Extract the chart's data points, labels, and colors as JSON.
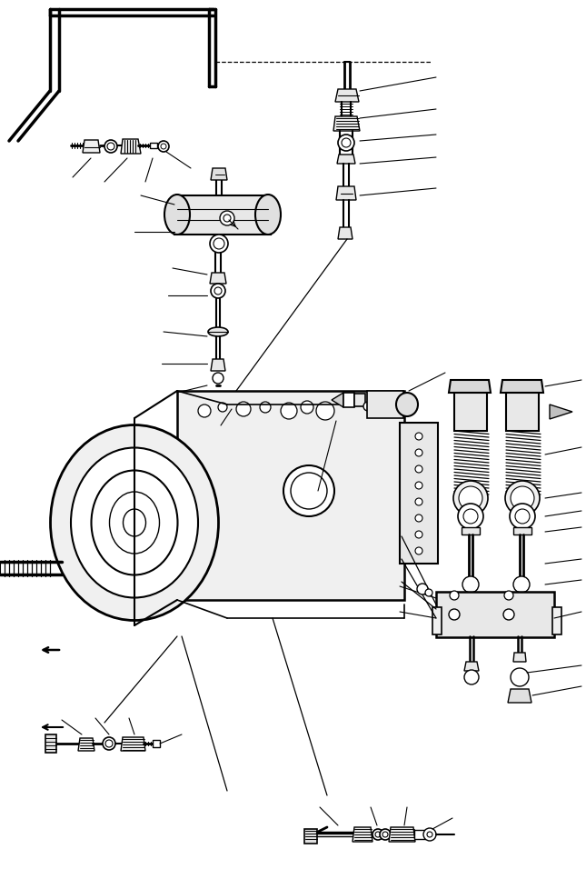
{
  "background_color": "#ffffff",
  "line_color": "#000000",
  "figure_width": 6.45,
  "figure_height": 9.56,
  "dpi": 100
}
